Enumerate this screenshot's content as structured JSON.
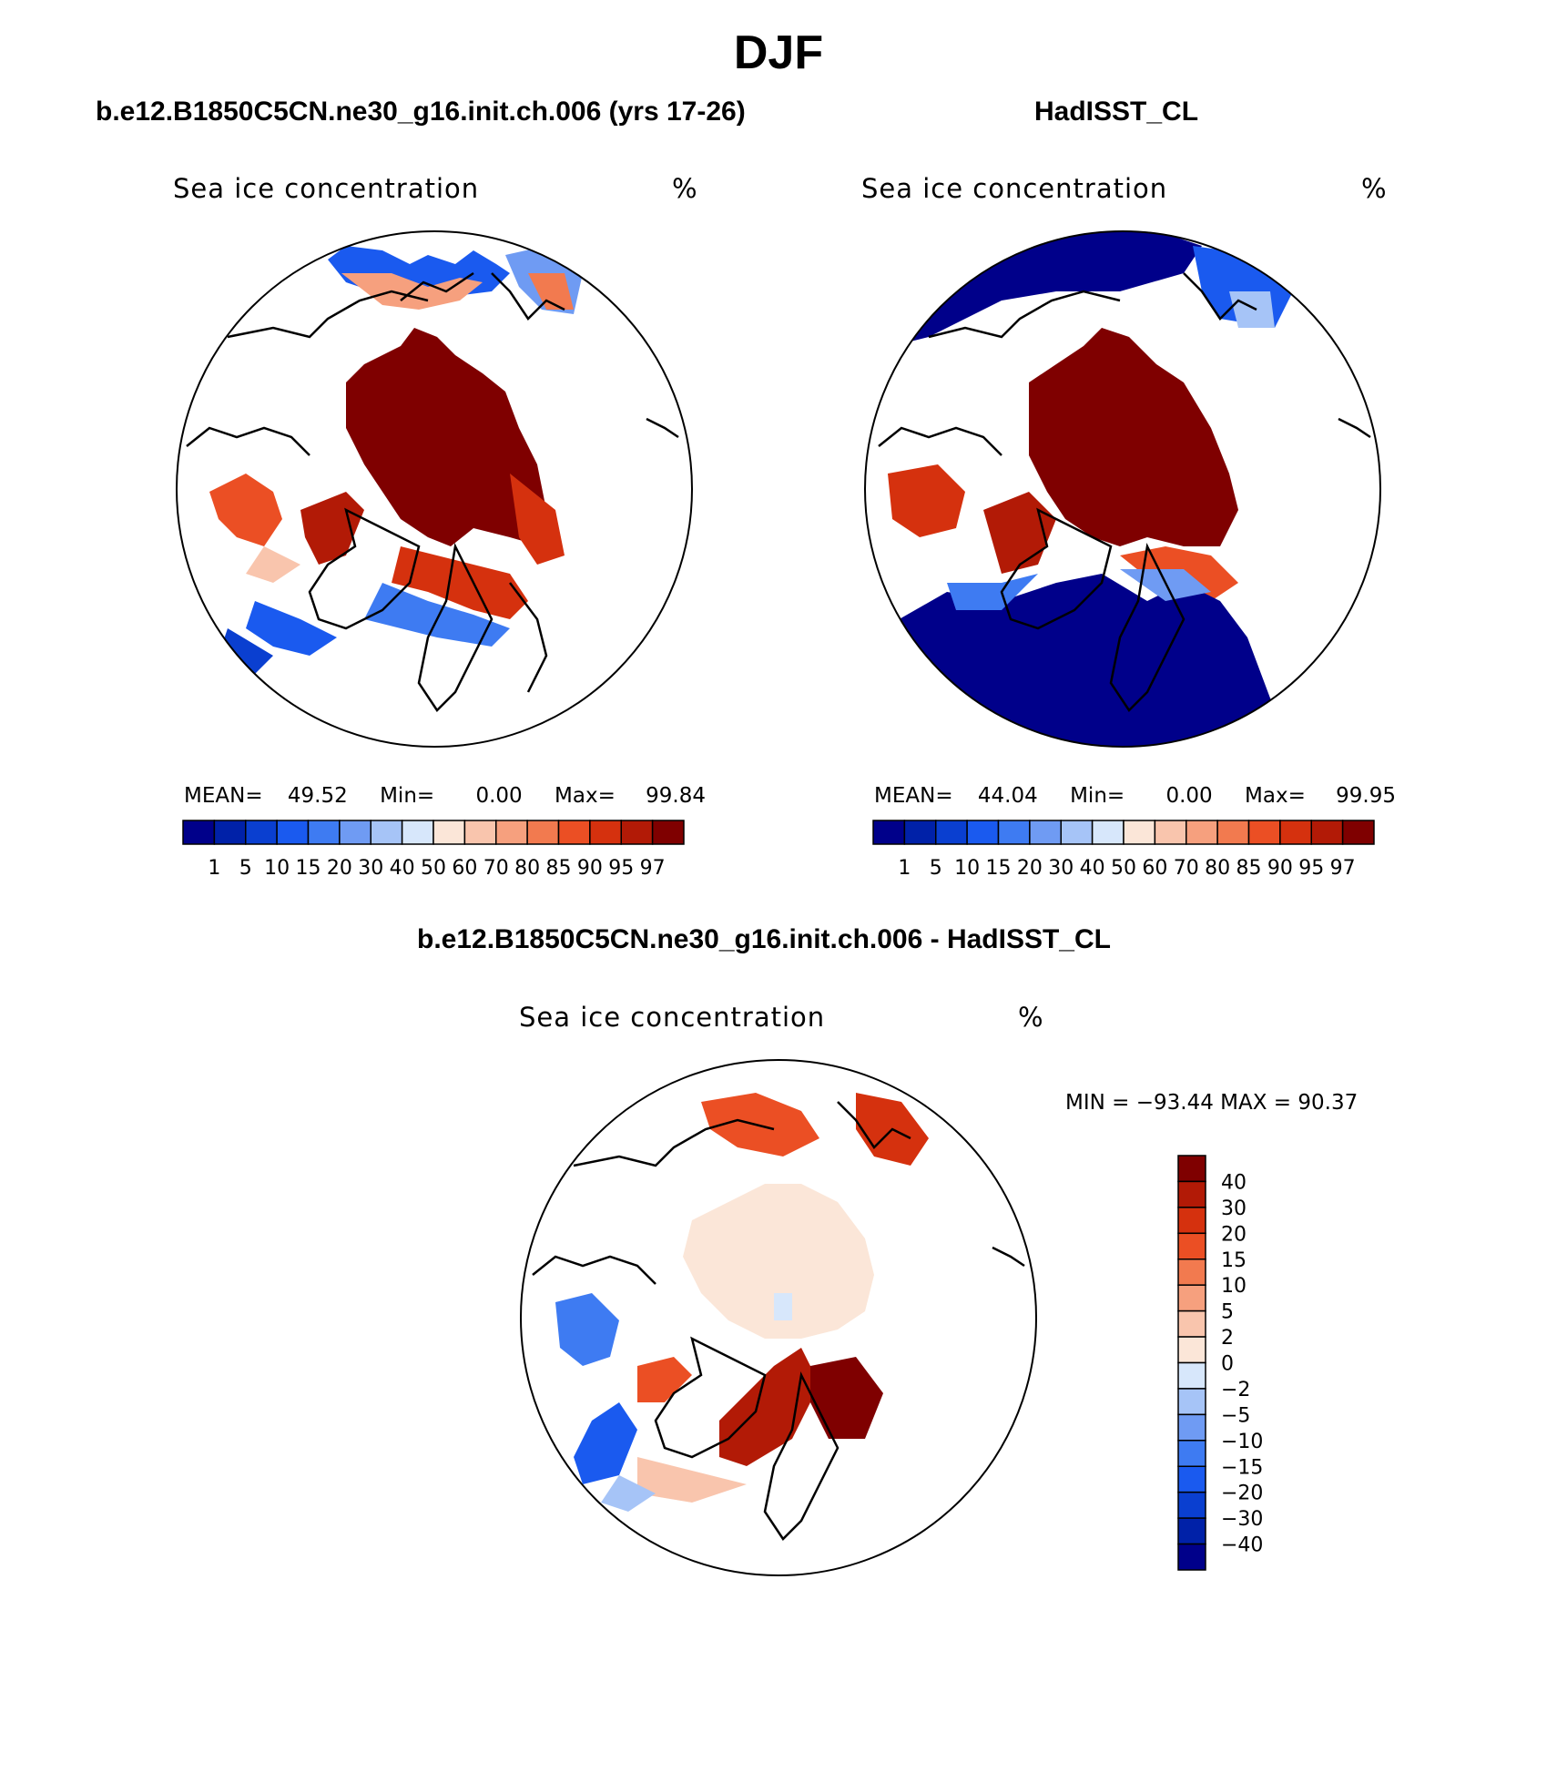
{
  "page": {
    "title": "DJF",
    "subtitle_model": "b.e12.B1850C5CN.ne30_g16.init.ch.006 (yrs 17-26)",
    "subtitle_obs": "HadISST_CL",
    "subtitle_diff": "b.e12.B1850C5CN.ne30_g16.init.ch.006 - HadISST_CL"
  },
  "panels": {
    "model": {
      "variable": "Sea ice concentration",
      "units": "%",
      "mean_label": "MEAN=",
      "mean": "49.52",
      "min_label": "Min=",
      "min": "0.00",
      "max_label": "Max=",
      "max": "99.84"
    },
    "obs": {
      "variable": "Sea ice concentration",
      "units": "%",
      "mean_label": "MEAN=",
      "mean": "44.04",
      "min_label": "Min=",
      "min": "0.00",
      "max_label": "Max=",
      "max": "99.95"
    },
    "diff": {
      "variable": "Sea ice concentration",
      "units": "%",
      "minmax_text": "MIN = −93.44 MAX =   90.37"
    }
  },
  "colorbars": {
    "abs_levels": [
      "1",
      "5",
      "10",
      "15",
      "20",
      "30",
      "40",
      "50",
      "60",
      "70",
      "80",
      "85",
      "90",
      "95",
      "97"
    ],
    "abs_colors": [
      "#00008a",
      "#0021a8",
      "#0a3fd0",
      "#1a5aef",
      "#3e7bf2",
      "#6f9bf3",
      "#a6c4f7",
      "#d7e7fb",
      "#fbe6d8",
      "#f9c5ad",
      "#f6a07e",
      "#f27a4f",
      "#eb4f24",
      "#d5310e",
      "#b21a06",
      "#7f0000"
    ],
    "diff_levels": [
      "40",
      "30",
      "20",
      "15",
      "10",
      "5",
      "2",
      "0",
      "−2",
      "−5",
      "−10",
      "−15",
      "−20",
      "−30",
      "−40"
    ],
    "diff_colors": [
      "#7f0000",
      "#b21a06",
      "#d5310e",
      "#eb4f24",
      "#f27a4f",
      "#f6a07e",
      "#f9c5ad",
      "#fbe6d8",
      "#d7e7fb",
      "#a6c4f7",
      "#6f9bf3",
      "#3e7bf2",
      "#1a5aef",
      "#0a3fd0",
      "#0021a8",
      "#00008a"
    ]
  }
}
